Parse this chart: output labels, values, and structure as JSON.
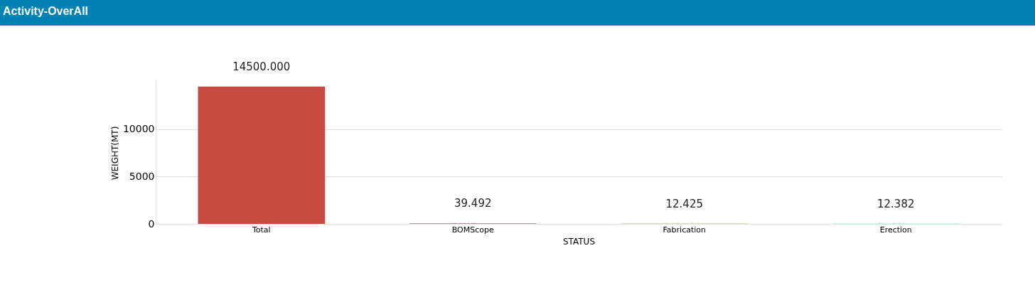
{
  "chart_data": {
    "type": "bar",
    "title": "Activity-OverAll",
    "xlabel": "STATUS",
    "ylabel": "WEIGHT(MT)",
    "categories": [
      "Total",
      "BOMScope",
      "Fabrication",
      "Erection"
    ],
    "values": [
      14500,
      39.492,
      12.425,
      12.382
    ],
    "colors": [
      "#c84b42",
      "#6c2e7c",
      "#8d8a00",
      "#00e4b0"
    ],
    "value_labels": [
      "14500.000",
      "39.492",
      "12.425",
      "12.382"
    ],
    "ylim": [
      0,
      15000
    ],
    "yticks": [
      0,
      5000,
      10000
    ],
    "grid": "y",
    "legend": false
  }
}
